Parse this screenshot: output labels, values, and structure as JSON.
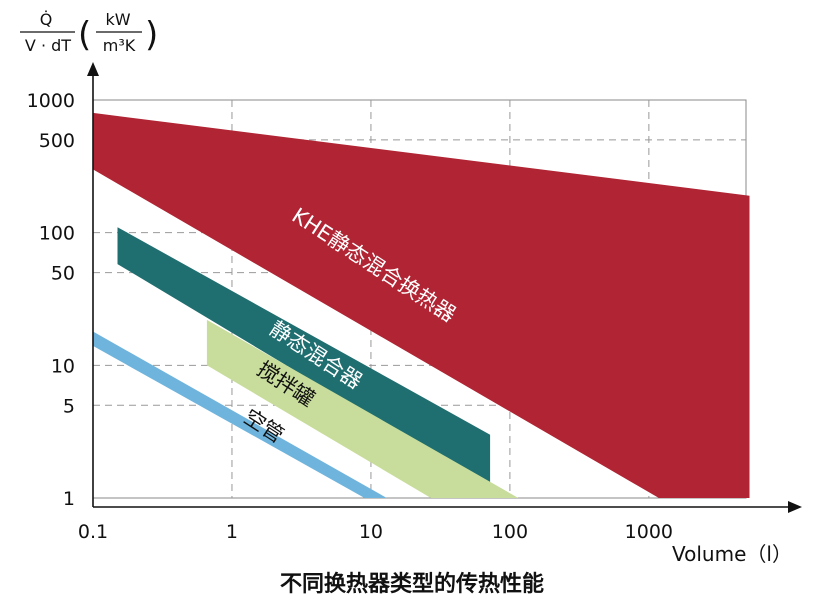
{
  "caption": "不同换热器类型的传热性能",
  "chart_data": {
    "type": "area",
    "x_scale": "log",
    "y_scale": "log",
    "xlim": [
      0.1,
      5000
    ],
    "ylim": [
      1,
      1000
    ],
    "xlabel": "Volume（l）",
    "ylabel": {
      "numerator": "Q̇",
      "denominator": "V · dT",
      "unit_numerator": "kW",
      "unit_denominator": "m³K"
    },
    "x_ticks": [
      {
        "value": 0.1,
        "label": "0.1"
      },
      {
        "value": 1,
        "label": "1"
      },
      {
        "value": 10,
        "label": "10"
      },
      {
        "value": 100,
        "label": "100"
      },
      {
        "value": 1000,
        "label": "1000"
      }
    ],
    "y_ticks": [
      {
        "value": 1,
        "label": "1"
      },
      {
        "value": 5,
        "label": "5"
      },
      {
        "value": 10,
        "label": "10"
      },
      {
        "value": 50,
        "label": "50"
      },
      {
        "value": 100,
        "label": "100"
      },
      {
        "value": 500,
        "label": "500"
      },
      {
        "value": 1000,
        "label": "1000"
      }
    ],
    "grid": "dashed",
    "series": [
      {
        "name": "KHE静态混合换热器",
        "color": "#b02433",
        "polygon": [
          [
            0.1,
            800
          ],
          [
            5300,
            190
          ],
          [
            5300,
            1
          ],
          [
            1180,
            1
          ],
          [
            0.1,
            300
          ]
        ]
      },
      {
        "name": "静态混合器",
        "color": "#1f6e70",
        "polygon": [
          [
            0.15,
            110
          ],
          [
            72,
            3.0
          ],
          [
            72,
            1.2
          ],
          [
            0.15,
            58
          ]
        ]
      },
      {
        "name": "搅拌罐",
        "color": "#c8dd9b",
        "polygon": [
          [
            0.66,
            22
          ],
          [
            115,
            1
          ],
          [
            27,
            1
          ],
          [
            0.66,
            10
          ]
        ]
      },
      {
        "name": "空管",
        "color": "#6fb4dd",
        "polygon": [
          [
            0.1,
            18
          ],
          [
            13,
            1
          ],
          [
            9,
            1
          ],
          [
            0.1,
            14
          ]
        ]
      }
    ]
  }
}
